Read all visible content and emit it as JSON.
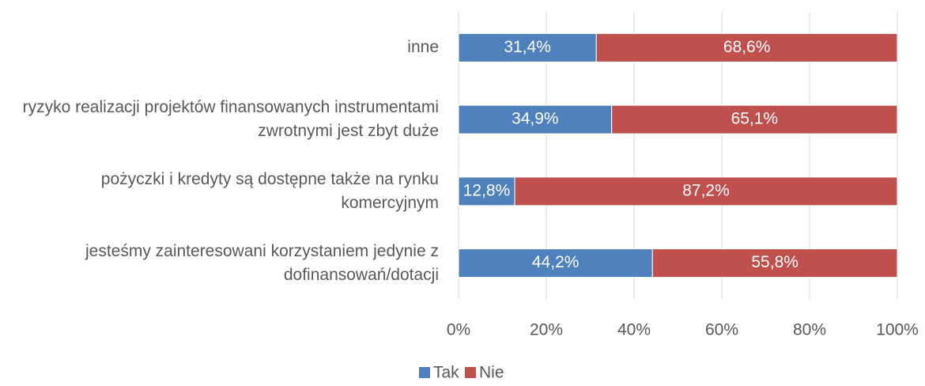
{
  "chart_data": {
    "type": "stacked_barh",
    "categories": [
      "inne",
      "ryzyko realizacji projektów finansowanych instrumentami zwrotnymi jest zbyt duże",
      "pożyczki i kredyty są dostępne także na rynku komercyjnym",
      "jesteśmy zainteresowani korzystaniem jedynie z dofinansowań/dotacji"
    ],
    "series": [
      {
        "name": "Tak",
        "color": "#4f81bd",
        "values": [
          31.4,
          34.9,
          12.8,
          44.2
        ],
        "value_labels": [
          "31,4%",
          "34,9%",
          "12,8%",
          "44,2%"
        ]
      },
      {
        "name": "Nie",
        "color": "#c0504d",
        "values": [
          68.6,
          65.1,
          87.2,
          55.8
        ],
        "value_labels": [
          "68,6%",
          "65,1%",
          "87,2%",
          "55,8%"
        ]
      }
    ],
    "xlim": [
      0,
      100
    ],
    "xticks": [
      {
        "value": 0,
        "label": "0%"
      },
      {
        "value": 20,
        "label": "20%"
      },
      {
        "value": 40,
        "label": "40%"
      },
      {
        "value": 60,
        "label": "60%"
      },
      {
        "value": 80,
        "label": "80%"
      },
      {
        "value": 100,
        "label": "100%"
      }
    ],
    "grid": true,
    "legend": "bottom"
  }
}
